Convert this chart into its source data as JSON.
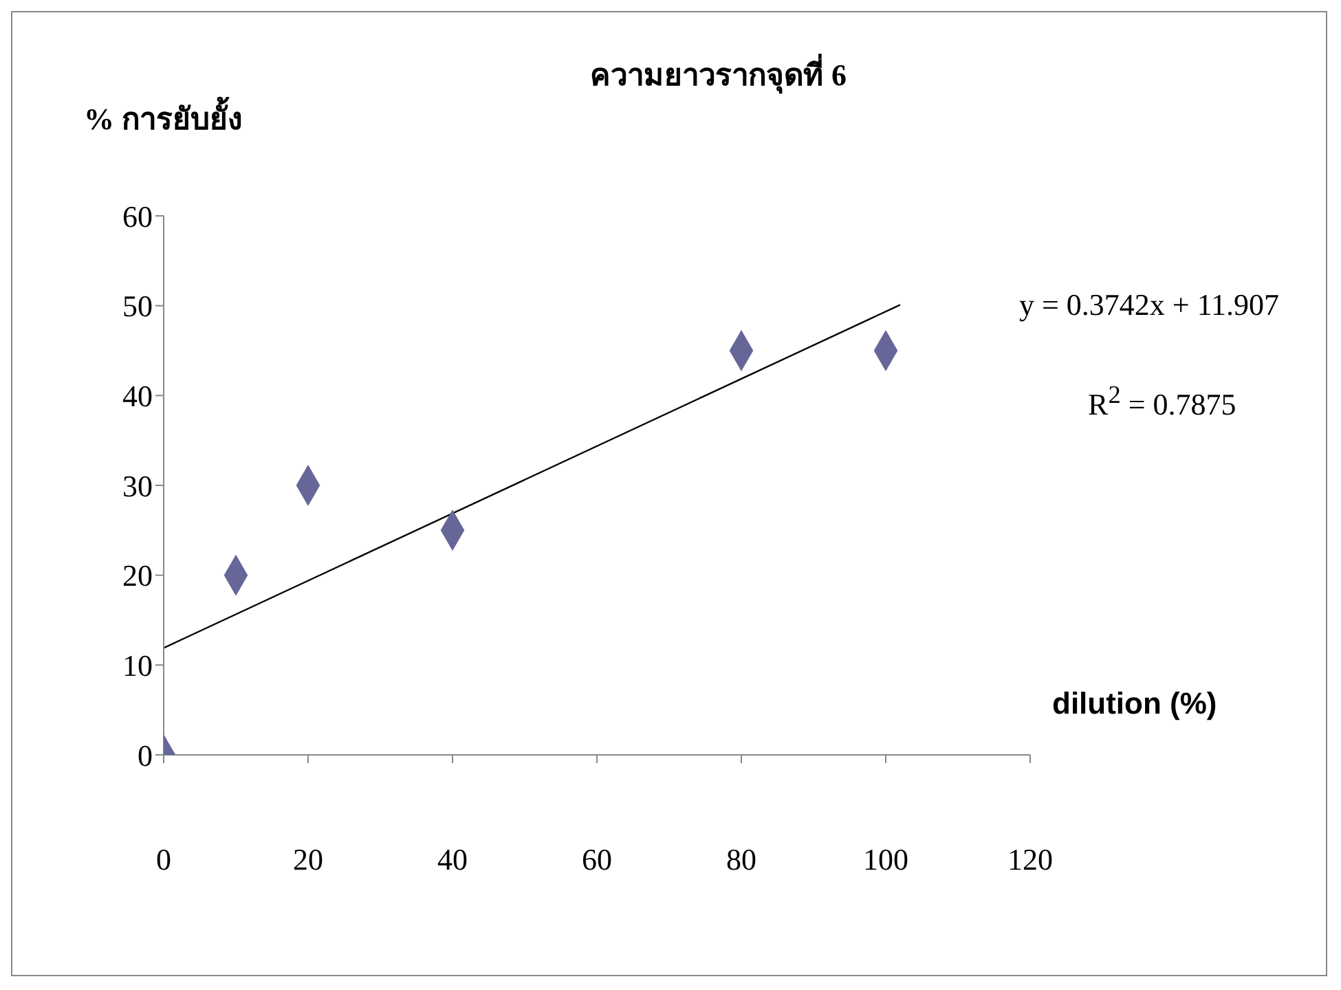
{
  "chart_data": {
    "type": "scatter",
    "title": "ความยาวรากจุดที่ 6",
    "ylabel": "% การยับยั้ง",
    "xlabel": "dilution (%)",
    "xlim": [
      0,
      120
    ],
    "xticks": [
      0,
      20,
      40,
      60,
      80,
      100,
      120
    ],
    "ylim": [
      0,
      60
    ],
    "yticks": [
      0,
      10,
      20,
      30,
      40,
      50,
      60
    ],
    "series": [
      {
        "type": "scatter",
        "marker": "diamond",
        "color": "#666699",
        "x": [
          0,
          10,
          20,
          40,
          80,
          100
        ],
        "values": [
          0,
          20,
          30,
          25,
          45,
          45
        ]
      },
      {
        "type": "line",
        "marker": "none",
        "color": "#000000",
        "x": [
          0,
          102
        ],
        "values": [
          11.9,
          50.1
        ]
      }
    ],
    "annotations": [
      "y = 0.3742x + 11.907",
      "R$^{2}$ = 0.7875"
    ]
  }
}
